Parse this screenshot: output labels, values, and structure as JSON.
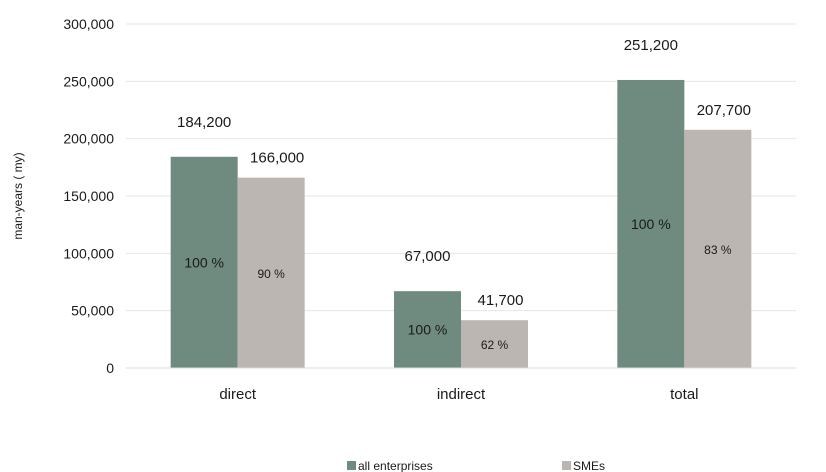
{
  "chart_data": {
    "type": "bar",
    "categories": [
      "direct",
      "indirect",
      "total"
    ],
    "series": [
      {
        "name": "all enterprises",
        "values": [
          184200,
          67000,
          251200
        ],
        "value_labels": [
          "184,200",
          "67,000",
          "251,200"
        ],
        "share_labels": [
          "100 %",
          "100 %",
          "100 %"
        ],
        "color": "#6f8b7f"
      },
      {
        "name": "SMEs",
        "values": [
          166000,
          41700,
          207700
        ],
        "value_labels": [
          "166,000",
          "41,700",
          "207,700"
        ],
        "share_labels": [
          "90 %",
          "62 %",
          "83 %"
        ],
        "color": "#bcb6b2"
      }
    ],
    "ylabel": "man-years ( my)",
    "ylim": [
      0,
      300000
    ],
    "yticks": [
      0,
      50000,
      100000,
      150000,
      200000,
      250000,
      300000
    ],
    "ytick_labels": [
      "0",
      "50,000",
      "100,000",
      "150,000",
      "200,000",
      "250,000",
      "300,000"
    ],
    "grid": true,
    "legend_position": "bottom"
  }
}
